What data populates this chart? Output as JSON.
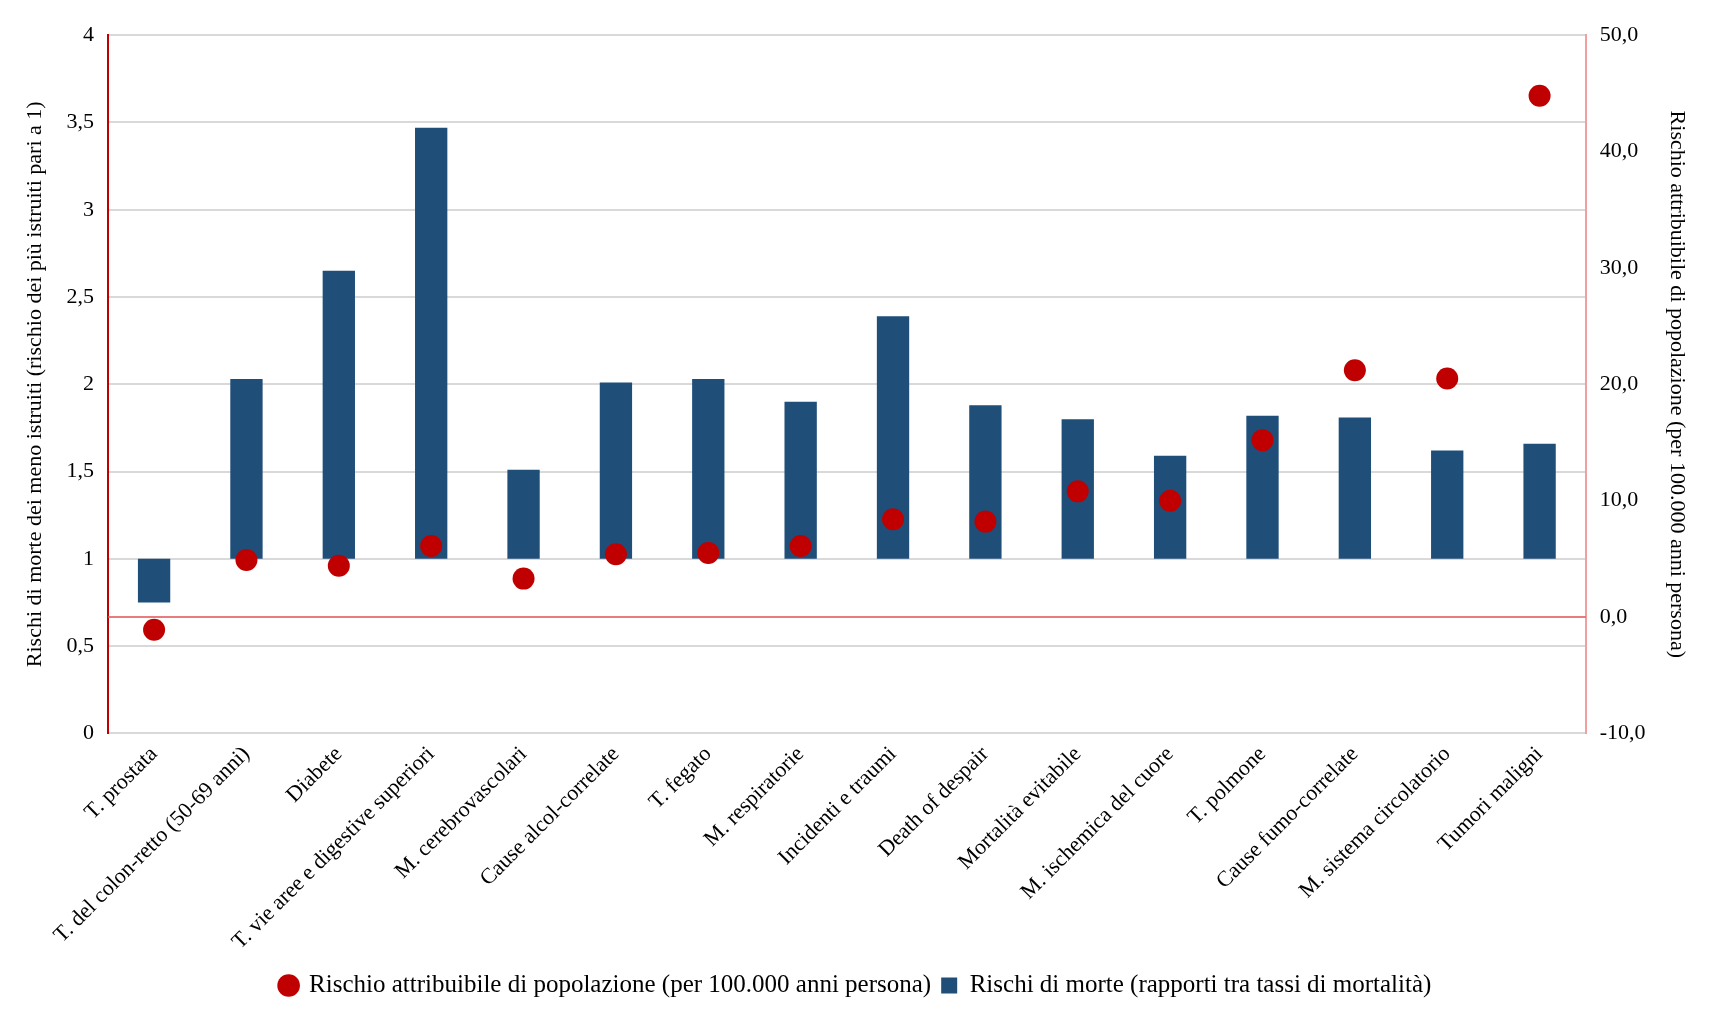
{
  "chart_data": {
    "type": "bar",
    "categories": [
      "T. prostata",
      "T. del colon-retto (50-69 anni)",
      "Diabete",
      "T. vie aree e digestive superiori",
      "M. cerebrovascolari",
      "Cause alcol-correlate",
      "T. fegato",
      "M. respiratorie",
      "Incidenti e traumi",
      "Death of despair",
      "Mortalità evitabile",
      "M. ischemica del cuore",
      "T. polmone",
      "Cause fumo-correlate",
      "M. sistema circolatorio",
      "Tumori maligni"
    ],
    "series": [
      {
        "name": "Rischi di morte (rapporti tra tassi di mortalità)",
        "color": "#1f4e79",
        "base": [
          1,
          1,
          1,
          1,
          1,
          1,
          1,
          1,
          1,
          1,
          1,
          1,
          1,
          1,
          1,
          1
        ],
        "values": [
          -0.25,
          1.03,
          1.65,
          2.47,
          0.51,
          1.01,
          1.03,
          0.9,
          1.39,
          0.88,
          0.8,
          0.59,
          0.82,
          0.81,
          0.62,
          0.66
        ]
      },
      {
        "name": "Rischio attribuibile di popolazione (per 100.000 anni persona)",
        "type": "scatter",
        "axis": "y2",
        "color": "#c00000",
        "values": [
          -1.1,
          4.9,
          4.4,
          6.1,
          3.3,
          5.4,
          5.5,
          6.1,
          8.4,
          8.2,
          10.8,
          10.0,
          15.2,
          21.2,
          20.5,
          44.8
        ]
      }
    ],
    "marker": "circle",
    "ylabel": "Rischi di morte dei meno istruiti (rischio dei più istruiti pari a 1)",
    "y2label": "Rischio attribuibile di popolazione (per 100.000 anni persona)",
    "ylim": [
      0,
      4
    ],
    "yticks": [
      0,
      {
        "value": 0.5,
        "label": "0,5"
      },
      1,
      {
        "value": 1.5,
        "label": "1,5"
      },
      2,
      {
        "value": 2.5,
        "label": "2,5"
      },
      3,
      {
        "value": 3.5,
        "label": "3,5"
      },
      4
    ],
    "y2lim": [
      -10,
      50
    ],
    "y2ticks": [
      {
        "value": -10,
        "label": "-10,0"
      },
      {
        "value": 0,
        "label": "0,0"
      },
      {
        "value": 10,
        "label": "10,0"
      },
      {
        "value": 20,
        "label": "20,0"
      },
      {
        "value": 30,
        "label": "30,0"
      },
      {
        "value": 40,
        "label": "40,0"
      },
      {
        "value": 50,
        "label": "50,0"
      }
    ],
    "grid": "y",
    "legend": "bottom",
    "ref_lines": [
      {
        "axis": "y2",
        "value": 0,
        "color": "#e05050"
      }
    ]
  }
}
